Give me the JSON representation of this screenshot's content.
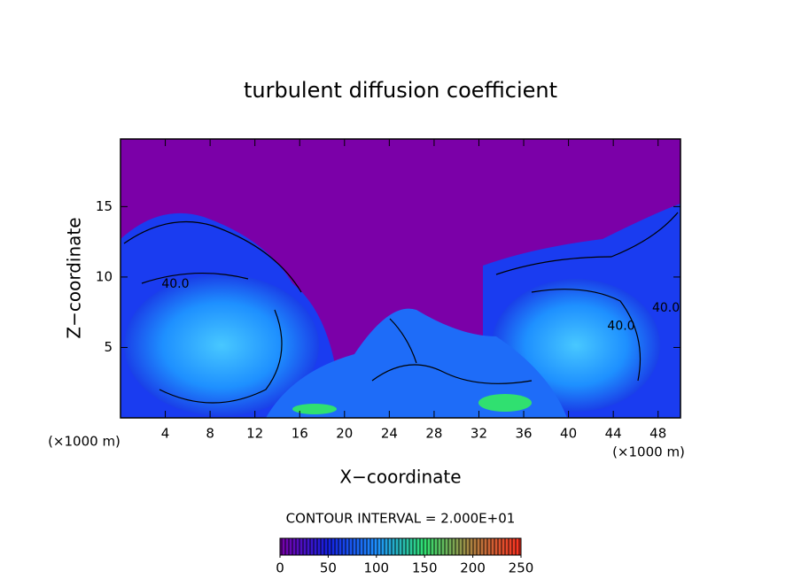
{
  "chart_data": {
    "type": "contour",
    "title": "turbulent diffusion coefficient",
    "x_label": "X−coordinate",
    "y_label": "Z−coordinate",
    "x_unit_label": "(×1000 m)",
    "y_unit_label": "(×1000 m)",
    "xlim": [
      0,
      50
    ],
    "xticks": [
      4,
      8,
      12,
      16,
      20,
      24,
      28,
      32,
      36,
      40,
      44,
      48
    ],
    "ylim": [
      0,
      19.8
    ],
    "yticks": [
      5,
      10,
      15
    ],
    "contour_interval": {
      "value": 20,
      "label": "CONTOUR INTERVAL = 2.000E+01"
    },
    "contour_labels": [
      {
        "x": 4.9,
        "z": 9.5,
        "value": 40,
        "label": "40.0"
      },
      {
        "x": 44.7,
        "z": 6.5,
        "value": 40,
        "label": "40.0"
      },
      {
        "x": 48.7,
        "z": 7.8,
        "value": 40,
        "label": "40.0"
      }
    ],
    "colorbar": {
      "lim": [
        0,
        250
      ],
      "ticks": [
        0,
        50,
        100,
        150,
        200,
        250
      ]
    },
    "colormap": [
      "#7b00a8",
      "#1420e0",
      "#1e90ff",
      "#30e070",
      "#b08040",
      "#ff3020"
    ]
  }
}
